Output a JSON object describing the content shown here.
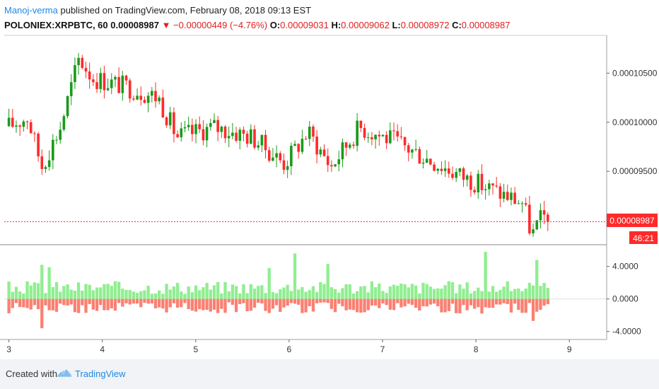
{
  "header": {
    "author": "Manoj-verma",
    "published_text": "published on TradingView.com, February 08, 2018 09:13 EST",
    "symbol": "POLONIEX:XRPBTC, 60",
    "last": "0.00008987",
    "change": "▼ −0.00000449 (−4.76%)",
    "o_label": "O:",
    "o_value": "0.00009031",
    "h_label": "H:",
    "h_value": "0.00009062",
    "l_label": "L:",
    "l_value": "0.00008972",
    "c_label": "C:",
    "c_value": "0.00008987"
  },
  "footer": {
    "created_with": "Created with",
    "brand": "TradingView",
    "logo_icon": "tradingview-cloud-icon"
  },
  "colors": {
    "up": "#1a9a1a",
    "down": "#ff2a2a",
    "hist_pos": "#90ee90",
    "hist_neg": "#fa8072",
    "price_line": "#e53935"
  },
  "chart_data": [
    {
      "type": "candlestick",
      "x_axis": {
        "tick_labels": [
          "3",
          "4",
          "5",
          "6",
          "7",
          "8",
          "9"
        ],
        "range": [
          2.95,
          9.4
        ]
      },
      "y_axis": {
        "tick_labels": [
          "0.00010500",
          "0.00010000",
          "0.00009500"
        ],
        "range": [
          8.76e-05,
          0.0001087
        ]
      },
      "last_price_label": "0.00008987",
      "countdown_label": "46:21",
      "key_points": [
        {
          "x": 3.0,
          "price": 9.96e-05
        },
        {
          "x": 3.2,
          "price": 0.0001005
        },
        {
          "x": 3.35,
          "price": 9.55e-05
        },
        {
          "x": 3.55,
          "price": 9.95e-05
        },
        {
          "x": 3.75,
          "price": 0.0001065
        },
        {
          "x": 3.9,
          "price": 0.0001045
        },
        {
          "x": 4.3,
          "price": 0.0001035
        },
        {
          "x": 4.6,
          "price": 0.0001025
        },
        {
          "x": 4.8,
          "price": 9.85e-05
        },
        {
          "x": 5.2,
          "price": 9.95e-05
        },
        {
          "x": 5.6,
          "price": 9.85e-05
        },
        {
          "x": 5.95,
          "price": 9.58e-05
        },
        {
          "x": 6.2,
          "price": 9.9e-05
        },
        {
          "x": 6.45,
          "price": 9.55e-05
        },
        {
          "x": 6.75,
          "price": 9.95e-05
        },
        {
          "x": 7.1,
          "price": 9.82e-05
        },
        {
          "x": 7.5,
          "price": 9.62e-05
        },
        {
          "x": 7.85,
          "price": 9.45e-05
        },
        {
          "x": 8.2,
          "price": 9.3e-05
        },
        {
          "x": 8.5,
          "price": 9.18e-05
        },
        {
          "x": 8.6,
          "price": 8.85e-05
        },
        {
          "x": 8.72,
          "price": 9.05e-05
        },
        {
          "x": 8.77,
          "price": 8.987e-05
        }
      ]
    },
    {
      "type": "bar",
      "name": "histogram",
      "y_axis": {
        "tick_labels": [
          "4.0000",
          "0.0000",
          "-4.0000"
        ],
        "range": [
          -4.9,
          6.5
        ]
      },
      "notable_values": [
        {
          "x": 3.35,
          "value": 4.2
        },
        {
          "x": 3.45,
          "value": 3.9
        },
        {
          "x": 3.35,
          "value": -3.6
        },
        {
          "x": 5.8,
          "value": 3.8
        },
        {
          "x": 6.05,
          "value": 5.6
        },
        {
          "x": 6.4,
          "value": 4.3
        },
        {
          "x": 8.1,
          "value": 5.8
        },
        {
          "x": 8.65,
          "value": 4.8
        },
        {
          "x": 8.6,
          "value": -2.7
        }
      ]
    }
  ]
}
